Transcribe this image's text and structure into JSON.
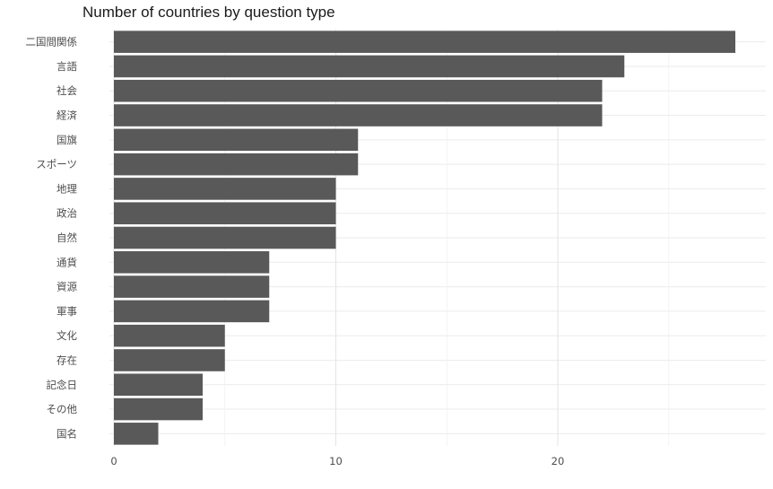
{
  "chart_data": {
    "type": "bar",
    "orientation": "horizontal",
    "title": "Number of countries by question type",
    "xlabel": "",
    "ylabel": "",
    "xlim": [
      0,
      29
    ],
    "x_ticks": [
      0,
      10,
      20
    ],
    "grid": true,
    "bar_color": "#595959",
    "categories": [
      "二国間関係",
      "言語",
      "社会",
      "経済",
      "国旗",
      "スポーツ",
      "地理",
      "政治",
      "自然",
      "通貨",
      "資源",
      "軍事",
      "文化",
      "存在",
      "記念日",
      "その他",
      "国名"
    ],
    "values": [
      28,
      23,
      22,
      22,
      11,
      11,
      10,
      10,
      10,
      7,
      7,
      7,
      5,
      5,
      4,
      4,
      2
    ]
  }
}
